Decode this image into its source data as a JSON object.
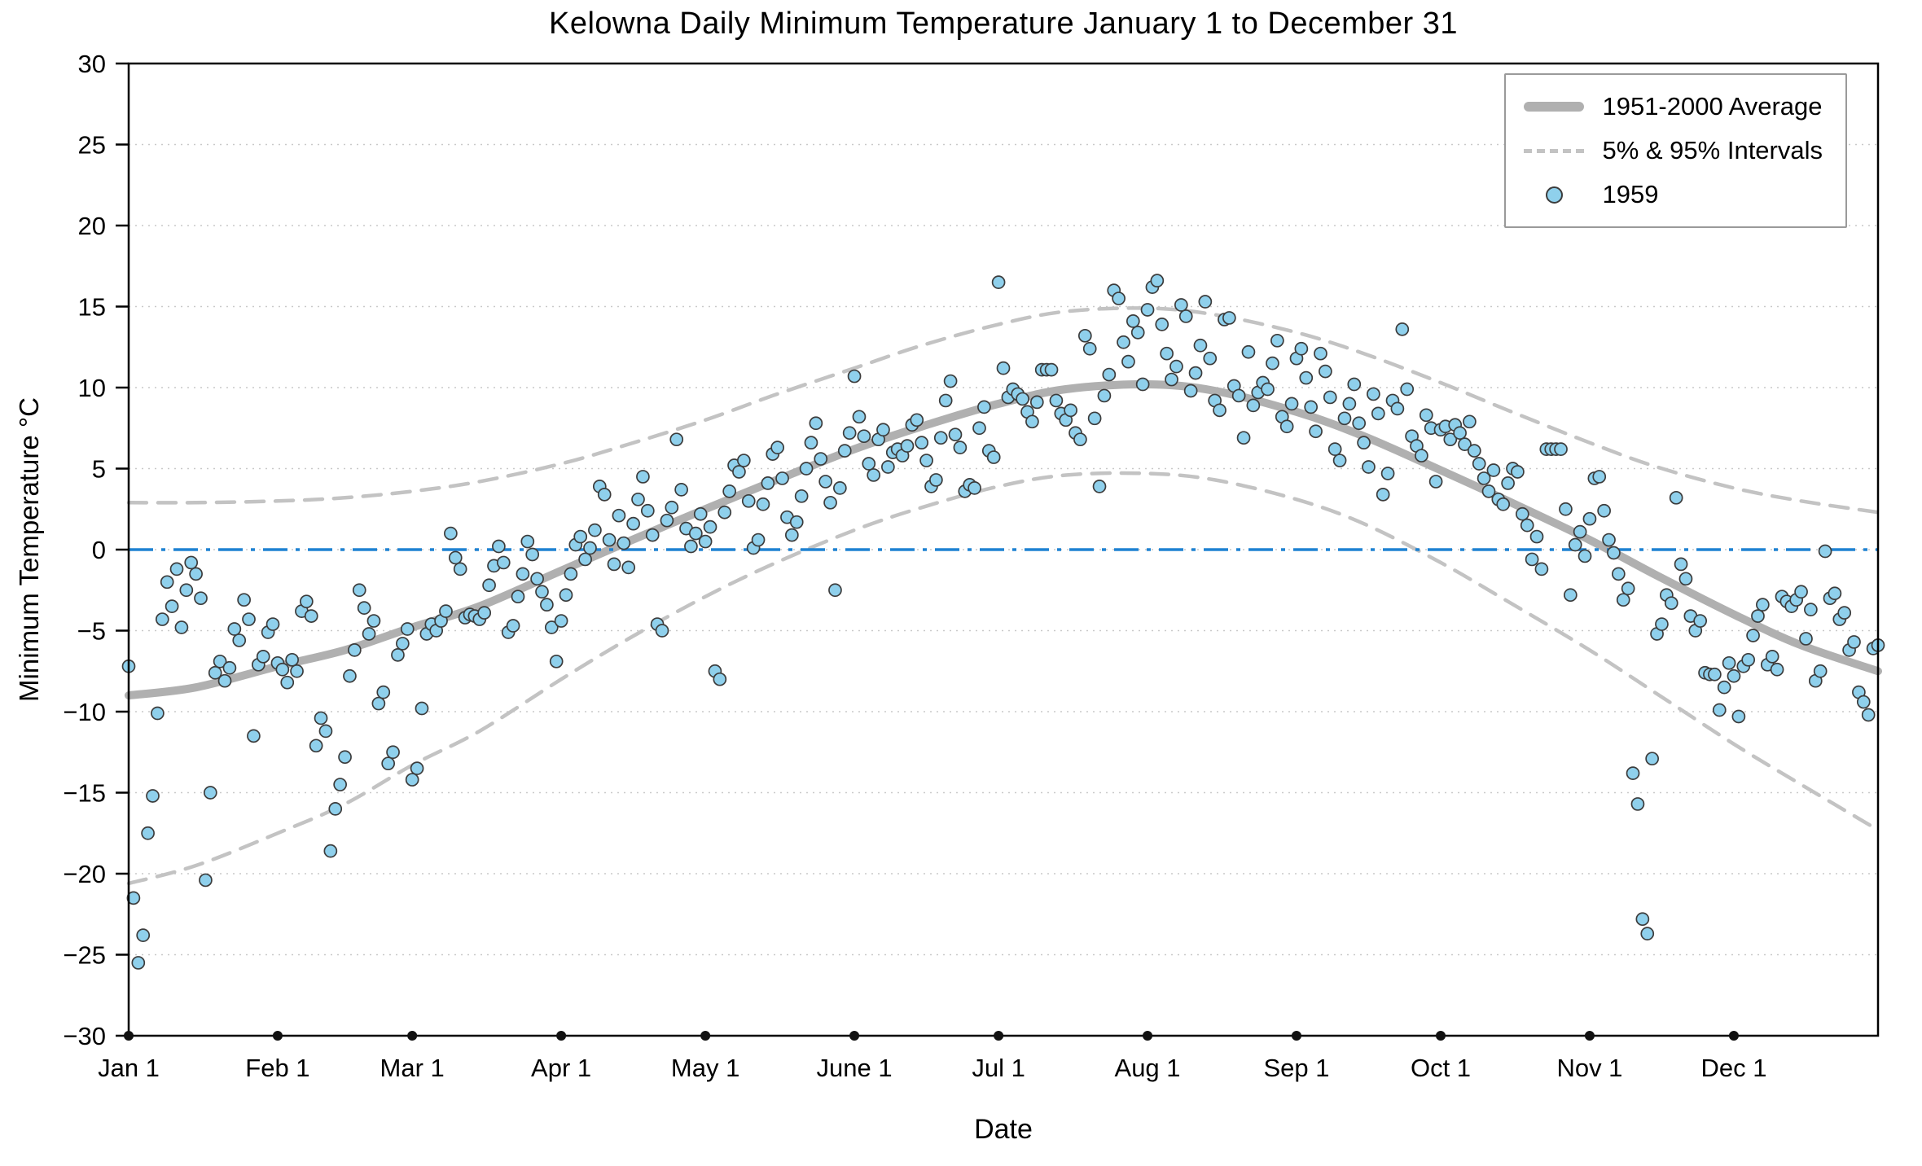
{
  "chart_data": {
    "type": "scatter",
    "title": "Kelowna Daily Minimum Temperature January 1 to December 31",
    "xlabel": "Date",
    "ylabel": "Minimum Temperature °C",
    "ylim": [
      -30,
      30
    ],
    "xlim_days": [
      1,
      365
    ],
    "grid": "dotted-horizontal",
    "legend_position": "top-right",
    "colors": {
      "scatter_fill": "#8fd0ec",
      "scatter_edge": "#3c3c3c",
      "average_line": "#b0b0b0",
      "interval_line": "#c3c3c3",
      "zero_line": "#1e82d2",
      "frame": "#000000",
      "gridline": "#c9c9c9"
    },
    "y_tick_values": [
      30,
      25,
      20,
      15,
      10,
      5,
      0,
      -5,
      -10,
      -15,
      -20,
      -25,
      -30
    ],
    "y_tick_labels": [
      "30",
      "25",
      "20",
      "15",
      "10",
      "5",
      "0",
      "−5",
      "−10",
      "−15",
      "−20",
      "−25",
      "−30"
    ],
    "x_ticks": {
      "days": [
        1,
        32,
        60,
        91,
        121,
        152,
        182,
        213,
        244,
        274,
        305,
        335
      ],
      "labels": [
        "Jan 1",
        "Feb 1",
        "Mar 1",
        "Apr 1",
        "May 1",
        "June 1",
        "Jul 1",
        "Aug 1",
        "Sep 1",
        "Oct 1",
        "Nov 1",
        "Dec 1"
      ]
    },
    "zero_line": {
      "y": 0,
      "style": "dash-dot"
    },
    "legend": [
      {
        "label": "1951-2000 Average",
        "type": "thick-line"
      },
      {
        "label": "5% & 95% Intervals",
        "type": "dashed-line"
      },
      {
        "label": "1959",
        "type": "point"
      }
    ],
    "average_curve": {
      "days": [
        1,
        15,
        32,
        46,
        60,
        74,
        91,
        105,
        121,
        135,
        152,
        166,
        182,
        196,
        213,
        227,
        244,
        258,
        274,
        288,
        305,
        319,
        335,
        349,
        365
      ],
      "values": [
        -9.0,
        -8.5,
        -7.2,
        -6.2,
        -4.8,
        -3.5,
        -1.3,
        0.5,
        2.5,
        4.2,
        6.2,
        7.6,
        9.0,
        9.9,
        10.2,
        9.8,
        8.5,
        7.0,
        4.9,
        3.0,
        0.6,
        -1.6,
        -4.0,
        -5.9,
        -7.5
      ]
    },
    "upper_95_curve": {
      "days": [
        1,
        15,
        32,
        46,
        60,
        74,
        91,
        105,
        121,
        135,
        152,
        166,
        182,
        196,
        213,
        227,
        244,
        258,
        274,
        288,
        305,
        319,
        335,
        349,
        365
      ],
      "values": [
        2.9,
        2.9,
        3.0,
        3.2,
        3.6,
        4.2,
        5.3,
        6.5,
        8.0,
        9.5,
        11.2,
        12.6,
        13.9,
        14.7,
        14.9,
        14.5,
        13.4,
        12.1,
        10.3,
        8.6,
        6.6,
        5.1,
        3.8,
        3.0,
        2.3
      ]
    },
    "lower_5_curve": {
      "days": [
        1,
        15,
        32,
        46,
        60,
        74,
        91,
        105,
        121,
        135,
        152,
        166,
        182,
        196,
        213,
        227,
        244,
        258,
        274,
        288,
        305,
        319,
        335,
        349,
        365
      ],
      "values": [
        -20.6,
        -19.5,
        -17.5,
        -15.7,
        -13.3,
        -11.2,
        -8.0,
        -5.5,
        -2.9,
        -0.9,
        1.2,
        2.6,
        3.9,
        4.6,
        4.7,
        4.3,
        3.1,
        1.6,
        -0.8,
        -3.2,
        -6.2,
        -8.9,
        -12.0,
        -14.5,
        -17.3
      ]
    },
    "scatter_1959": {
      "series_name": "1959",
      "start_day": 1,
      "values": [
        -7.2,
        -21.5,
        -25.5,
        -23.8,
        -17.5,
        -15.2,
        -10.1,
        -4.3,
        -2.0,
        -3.5,
        -1.2,
        -4.8,
        -2.5,
        -0.8,
        -1.5,
        -3.0,
        -20.4,
        -15.0,
        -7.6,
        -6.9,
        -8.1,
        -7.3,
        -4.9,
        -5.6,
        -3.1,
        -4.3,
        -11.5,
        -7.1,
        -6.6,
        -5.1,
        -4.6,
        -7.0,
        -7.4,
        -8.2,
        -6.8,
        -7.5,
        -3.8,
        -3.2,
        -4.1,
        -12.1,
        -10.4,
        -11.2,
        -18.6,
        -16.0,
        -14.5,
        -12.8,
        -7.8,
        -6.2,
        -2.5,
        -3.6,
        -5.2,
        -4.4,
        -9.5,
        -8.8,
        -13.2,
        -12.5,
        -6.5,
        -5.8,
        -4.9,
        -14.2,
        -13.5,
        -9.8,
        -5.2,
        -4.6,
        -5.0,
        -4.4,
        -3.8,
        1.0,
        -0.5,
        -1.2,
        -4.2,
        -4.0,
        -4.1,
        -4.3,
        -3.9,
        -2.2,
        -1.0,
        0.2,
        -0.8,
        -5.1,
        -4.7,
        -2.9,
        -1.5,
        0.5,
        -0.3,
        -1.8,
        -2.6,
        -3.4,
        -4.8,
        -6.9,
        -4.4,
        -2.8,
        -1.5,
        0.3,
        0.8,
        -0.6,
        0.1,
        1.2,
        3.9,
        3.4,
        0.6,
        -0.9,
        2.1,
        0.4,
        -1.1,
        1.6,
        3.1,
        4.5,
        2.4,
        0.9,
        -4.6,
        -5.0,
        1.8,
        2.6,
        6.8,
        3.7,
        1.3,
        0.2,
        1.0,
        2.2,
        0.5,
        1.4,
        -7.5,
        -8.0,
        2.3,
        3.6,
        5.2,
        4.8,
        5.5,
        3.0,
        0.1,
        0.6,
        2.8,
        4.1,
        5.9,
        6.3,
        4.4,
        2.0,
        0.9,
        1.7,
        3.3,
        5.0,
        6.6,
        7.8,
        5.6,
        4.2,
        2.9,
        -2.5,
        3.8,
        6.1,
        7.2,
        10.7,
        8.2,
        7.0,
        5.3,
        4.6,
        6.8,
        7.4,
        5.1,
        6.0,
        6.2,
        5.8,
        6.4,
        7.7,
        8.0,
        6.6,
        5.5,
        3.9,
        4.3,
        6.9,
        9.2,
        10.4,
        7.1,
        6.3,
        3.6,
        4.0,
        3.8,
        7.5,
        8.8,
        6.1,
        5.7,
        16.5,
        11.2,
        9.4,
        9.9,
        9.6,
        9.3,
        8.5,
        7.9,
        9.1,
        11.1,
        11.1,
        11.1,
        9.2,
        8.4,
        8.0,
        8.6,
        7.2,
        6.8,
        13.2,
        12.4,
        8.1,
        3.9,
        9.5,
        10.8,
        16.0,
        15.5,
        12.8,
        11.6,
        14.1,
        13.4,
        10.2,
        14.8,
        16.2,
        16.6,
        13.9,
        12.1,
        10.5,
        11.3,
        15.1,
        14.4,
        9.8,
        10.9,
        12.6,
        15.3,
        11.8,
        9.2,
        8.6,
        14.2,
        14.3,
        10.1,
        9.5,
        6.9,
        12.2,
        8.9,
        9.7,
        10.3,
        9.9,
        11.5,
        12.9,
        8.2,
        7.6,
        9.0,
        11.8,
        12.4,
        10.6,
        8.8,
        7.3,
        12.1,
        11.0,
        9.4,
        6.2,
        5.5,
        8.1,
        9.0,
        10.2,
        7.8,
        6.6,
        5.1,
        9.6,
        8.4,
        3.4,
        4.7,
        9.2,
        8.7,
        13.6,
        9.9,
        7.0,
        6.4,
        5.8,
        8.3,
        7.5,
        4.2,
        7.4,
        7.6,
        6.8,
        7.7,
        7.2,
        6.5,
        7.9,
        6.1,
        5.3,
        4.4,
        3.6,
        4.9,
        3.1,
        2.8,
        4.1,
        5.0,
        4.8,
        2.2,
        1.5,
        -0.6,
        0.8,
        -1.2,
        6.2,
        6.2,
        6.2,
        6.2,
        2.5,
        -2.8,
        0.3,
        1.1,
        -0.4,
        1.9,
        4.4,
        4.5,
        2.4,
        0.6,
        -0.2,
        -1.5,
        -3.1,
        -2.4,
        -13.8,
        -15.7,
        -22.8,
        -23.7,
        -12.9,
        -5.2,
        -4.6,
        -2.8,
        -3.3,
        3.2,
        -0.9,
        -1.8,
        -4.1,
        -5.0,
        -4.4,
        -7.6,
        -7.7,
        -7.7,
        -9.9,
        -8.5,
        -7.0,
        -7.8,
        -10.3,
        -7.2,
        -6.8,
        -5.3,
        -4.1,
        -3.4,
        -7.1,
        -6.6,
        -7.4,
        -2.9,
        -3.2,
        -3.5,
        -3.1,
        -2.6,
        -5.5,
        -3.7,
        -8.1,
        -7.5,
        -0.1,
        -3.0,
        -2.7,
        -4.3,
        -3.9,
        -6.2,
        -5.7,
        -8.8,
        -9.4,
        -10.2,
        -6.1,
        -5.9
      ]
    }
  }
}
